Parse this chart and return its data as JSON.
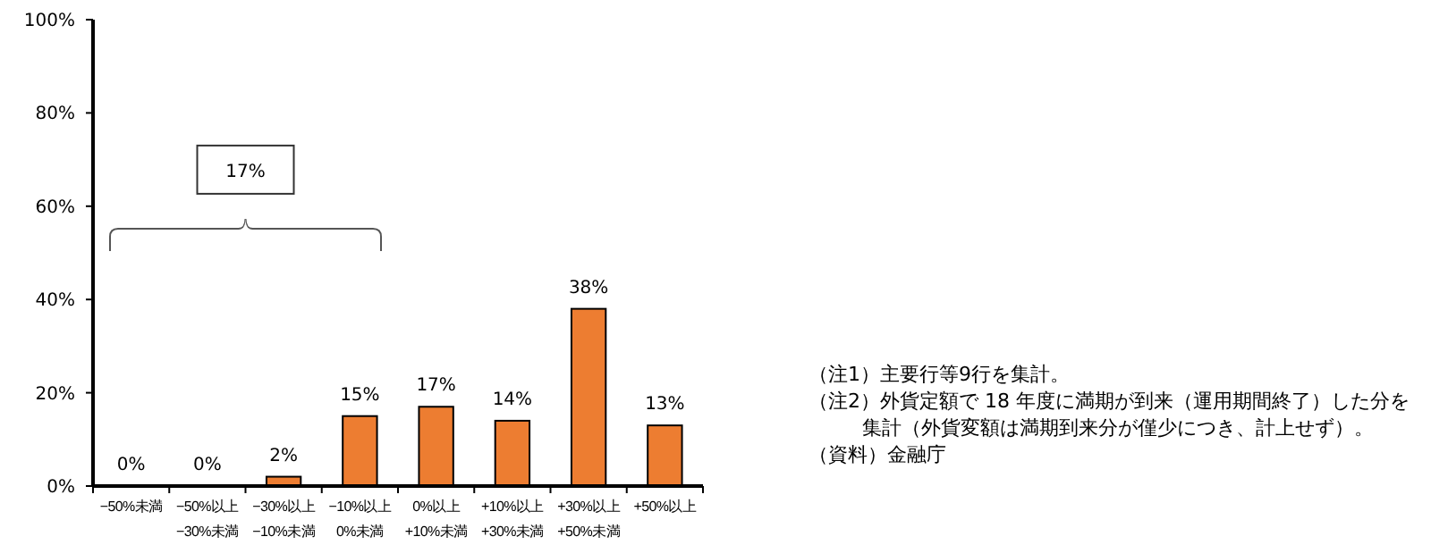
{
  "chart_data": {
    "type": "bar",
    "categories": [
      "−50%未満",
      "−50%以上\n−30%未満",
      "−30%以上\n−10%未満",
      "−10%以上\n0%未満",
      "0%以上\n+10%未満",
      "+10%以上\n+30%未満",
      "+30%以上\n+50%未満",
      "+50%以上"
    ],
    "values": [
      0,
      0,
      2,
      15,
      17,
      14,
      38,
      13
    ],
    "color": "#ed7d31",
    "ylim": [
      0,
      100
    ],
    "yticks": [
      {
        "value": 0,
        "label": "0%"
      },
      {
        "value": 20,
        "label": "20%"
      },
      {
        "value": 40,
        "label": "40%"
      },
      {
        "value": 60,
        "label": "60%"
      },
      {
        "value": 80,
        "label": "80%"
      },
      {
        "value": 100,
        "label": "100%"
      }
    ],
    "value_labels": [
      "0%",
      "0%",
      "2%",
      "15%",
      "17%",
      "14%",
      "38%",
      "13%"
    ],
    "grid": false,
    "annotations": [
      "17%",
      "（注1）主要行等9行を集計。",
      "（注2）外貨定額で 18 年度に満期が到来（運用期間終了）した分を集計（外貨変額は満期到来分が僅少につき、計上せず）。",
      "（資料）金融庁"
    ]
  }
}
